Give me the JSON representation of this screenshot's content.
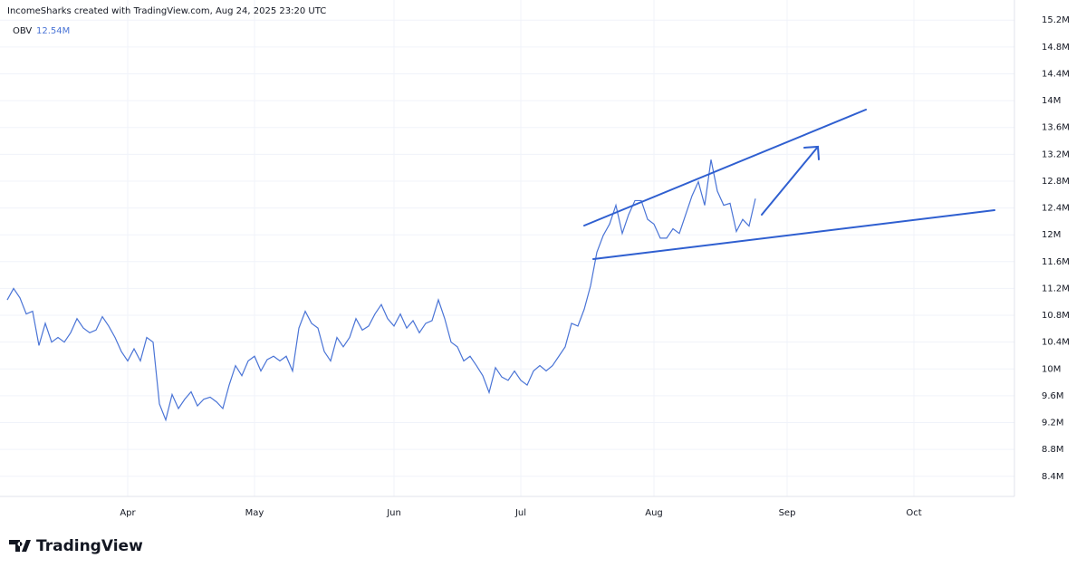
{
  "chart_data": {
    "type": "line",
    "title": "IncomeSharks created with TradingView.com, Aug 24, 2025 23:20 UTC",
    "indicator_name": "OBV",
    "current_value": {
      "value": 12.54,
      "label": "12.54M"
    },
    "watermark": "TradingView",
    "grid": true,
    "categories": [
      null,
      null,
      null,
      null,
      null,
      null,
      null,
      null,
      null,
      null,
      null,
      null,
      null,
      null,
      null,
      null,
      null,
      null,
      null,
      "Apr",
      null,
      null,
      null,
      null,
      null,
      null,
      null,
      null,
      null,
      null,
      null,
      null,
      null,
      null,
      null,
      null,
      null,
      null,
      null,
      "May",
      null,
      null,
      null,
      null,
      null,
      null,
      null,
      null,
      null,
      null,
      null,
      null,
      null,
      null,
      null,
      null,
      null,
      null,
      null,
      null,
      null,
      "Jun",
      null,
      null,
      null,
      null,
      null,
      null,
      null,
      null,
      null,
      null,
      null,
      null,
      null,
      null,
      null,
      null,
      null,
      null,
      null,
      "Jul",
      null,
      null,
      null,
      null,
      null,
      null,
      null,
      null,
      null,
      null,
      null,
      null,
      null,
      null,
      null,
      null,
      null,
      null,
      null,
      null,
      "Aug",
      null,
      null,
      null,
      null,
      null,
      null,
      null,
      null,
      null,
      null,
      null,
      null,
      null,
      null,
      null,
      null,
      null,
      null,
      null,
      null,
      "Sep",
      null,
      null,
      null,
      null,
      null,
      null,
      null,
      null,
      null,
      null,
      null,
      null,
      null,
      null,
      null,
      null,
      null,
      null,
      null,
      "Oct",
      null,
      null,
      null,
      null,
      null,
      null,
      null,
      null,
      null,
      null,
      null,
      null,
      null,
      null,
      null,
      null
    ],
    "series": [
      {
        "name": "OBV",
        "color": "#4a74d6",
        "values": [
          11.03,
          11.2,
          11.06,
          10.82,
          10.86,
          10.35,
          10.68,
          10.4,
          10.47,
          10.4,
          10.54,
          10.75,
          10.61,
          10.54,
          10.58,
          10.78,
          10.64,
          10.47,
          10.26,
          10.12,
          10.3,
          10.12,
          10.47,
          10.4,
          9.48,
          9.24,
          9.62,
          9.41,
          9.55,
          9.66,
          9.45,
          9.55,
          9.58,
          9.51,
          9.41,
          9.76,
          10.05,
          9.9,
          10.12,
          10.19,
          9.97,
          10.14,
          10.19,
          10.12,
          10.19,
          9.97,
          10.61,
          10.86,
          10.68,
          10.61,
          10.26,
          10.12,
          10.47,
          10.33,
          10.47,
          10.75,
          10.58,
          10.64,
          10.82,
          10.96,
          10.75,
          10.64,
          10.82,
          10.61,
          10.72,
          10.54,
          10.68,
          10.72,
          11.03,
          10.75,
          10.4,
          10.33,
          10.12,
          10.19,
          10.05,
          9.9,
          9.65,
          10.02,
          9.88,
          9.83,
          9.97,
          9.83,
          9.76,
          9.97,
          10.05,
          9.97,
          10.05,
          10.19,
          10.33,
          10.68,
          10.64,
          10.89,
          11.24,
          11.74,
          11.99,
          12.16,
          12.44,
          12.02,
          12.3,
          12.51,
          12.51,
          12.23,
          12.16,
          11.95,
          11.95,
          12.09,
          12.02,
          12.3,
          12.58,
          12.79,
          12.44,
          13.12,
          12.65,
          12.44,
          12.47,
          12.05,
          12.23,
          12.13,
          12.54,
          null,
          null,
          null,
          null,
          null,
          null,
          null,
          null,
          null,
          null,
          null,
          null,
          null,
          null,
          null,
          null,
          null,
          null,
          null,
          null,
          null,
          null,
          null,
          null,
          null,
          null,
          null,
          null,
          null,
          null,
          null,
          null,
          null,
          null,
          null,
          null,
          null,
          null,
          null,
          null,
          null
        ]
      }
    ],
    "ylim": [
      8.1,
      15.5
    ],
    "yticks": [
      {
        "value": 8.4,
        "label": "8.4M"
      },
      {
        "value": 8.8,
        "label": "8.8M"
      },
      {
        "value": 9.2,
        "label": "9.2M"
      },
      {
        "value": 9.6,
        "label": "9.6M"
      },
      {
        "value": 10,
        "label": "10M"
      },
      {
        "value": 10.4,
        "label": "10.4M"
      },
      {
        "value": 10.8,
        "label": "10.8M"
      },
      {
        "value": 11.2,
        "label": "11.2M"
      },
      {
        "value": 11.6,
        "label": "11.6M"
      },
      {
        "value": 12,
        "label": "12M"
      },
      {
        "value": 12.4,
        "label": "12.4M"
      },
      {
        "value": 12.8,
        "label": "12.8M"
      },
      {
        "value": 13.2,
        "label": "13.2M"
      },
      {
        "value": 13.6,
        "label": "13.6M"
      },
      {
        "value": 14,
        "label": "14M"
      },
      {
        "value": 14.4,
        "label": "14.4M"
      },
      {
        "value": 14.8,
        "label": "14.8M"
      },
      {
        "value": 15.2,
        "label": "15.2M"
      }
    ]
  }
}
